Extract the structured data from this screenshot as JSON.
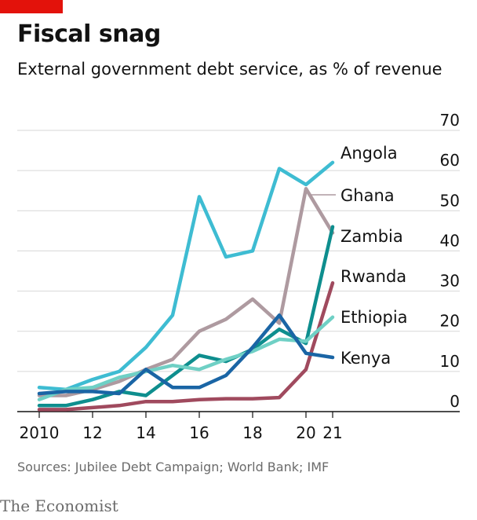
{
  "header": {
    "title": "Fiscal snag",
    "subtitle": "External government debt service, as % of revenue",
    "brand_color": "#e3120b"
  },
  "footer": {
    "source": "Sources: Jubilee Debt Campaign; World Bank; IMF",
    "publisher": "The Economist"
  },
  "chart_data": {
    "type": "line",
    "title": "Fiscal snag",
    "subtitle": "External government debt service, as % of revenue",
    "xlabel": "",
    "ylabel": "",
    "x": [
      2010,
      2011,
      2012,
      2013,
      2014,
      2015,
      2016,
      2017,
      2018,
      2019,
      2020,
      2021
    ],
    "xlim": [
      2010,
      2021
    ],
    "ylim": [
      0,
      70
    ],
    "x_ticks": [
      2010,
      2012,
      2014,
      2016,
      2018,
      2020,
      2021
    ],
    "x_tick_labels": [
      "2010",
      "12",
      "14",
      "16",
      "18",
      "20",
      "21"
    ],
    "y_ticks": [
      0,
      10,
      20,
      30,
      40,
      50,
      60,
      70
    ],
    "y_tick_labels": [
      "0",
      "10",
      "20",
      "30",
      "40",
      "50",
      "60",
      "70"
    ],
    "y_axis_side": "right",
    "grid": true,
    "legend": "direct labels at line ends (right)",
    "series": [
      {
        "name": "Angola",
        "color": "#3ebcd2",
        "values": [
          6,
          5.5,
          8,
          10,
          16,
          24,
          53.5,
          38.5,
          40,
          60.5,
          56.5,
          62
        ]
      },
      {
        "name": "Ghana",
        "color": "#ae9aa0",
        "values": [
          4,
          4,
          5.5,
          7.5,
          10.5,
          13,
          20,
          23,
          28,
          22,
          55.5,
          44.5
        ]
      },
      {
        "name": "Zambia",
        "color": "#0e8e8e",
        "values": [
          1.5,
          1.5,
          3,
          5,
          4,
          9,
          14,
          12.5,
          15.5,
          20.5,
          17,
          46
        ]
      },
      {
        "name": "Rwanda",
        "color": "#a04a5e",
        "values": [
          0.5,
          0.5,
          1,
          1.5,
          2.5,
          2.5,
          3,
          3.2,
          3.2,
          3.5,
          10.5,
          32
        ]
      },
      {
        "name": "Ethiopia",
        "color": "#6fd0c5",
        "values": [
          3,
          5.5,
          6,
          8.5,
          10,
          11.5,
          10.5,
          13,
          15,
          18,
          17.5,
          23.5
        ]
      },
      {
        "name": "Kenya",
        "color": "#1a65a5",
        "values": [
          4.5,
          5,
          5,
          4.5,
          10.5,
          6,
          6,
          9,
          16,
          24,
          14.5,
          13.5
        ]
      }
    ]
  }
}
